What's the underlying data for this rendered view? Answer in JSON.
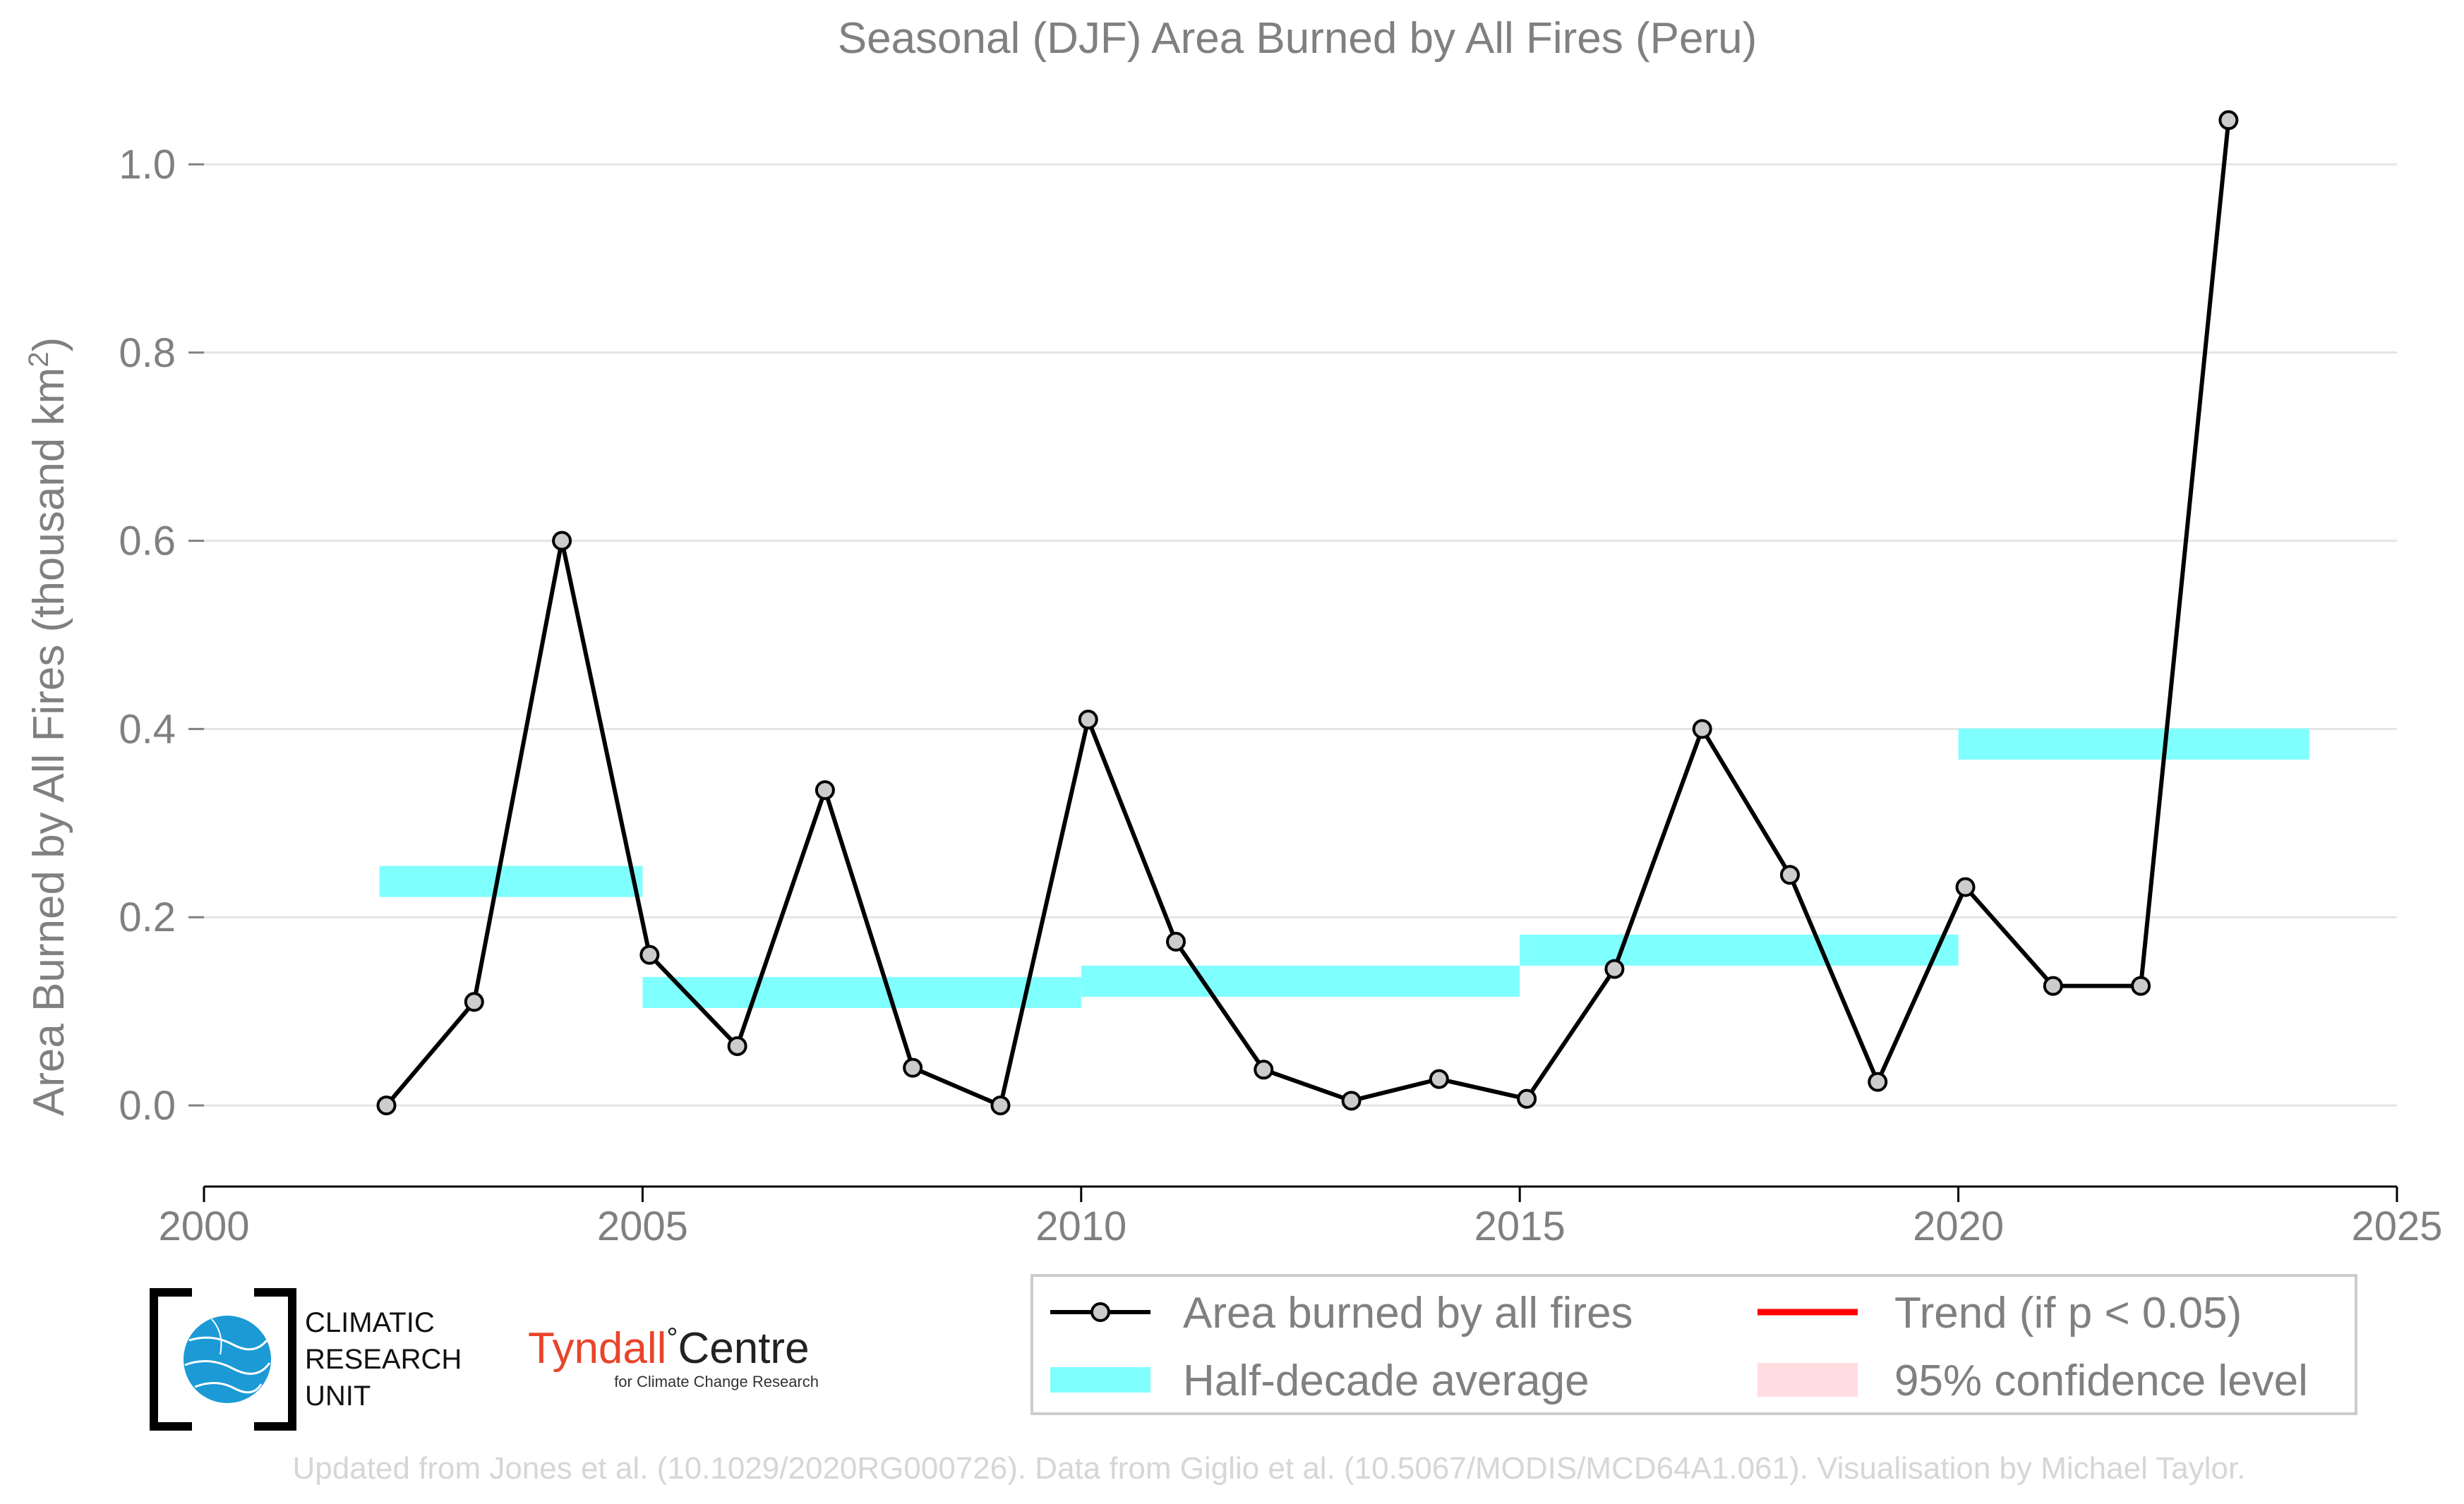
{
  "chart_data": {
    "type": "line",
    "title": "Seasonal (DJF) Area Burned by All Fires (Peru)",
    "xlabel": "",
    "ylabel_main": "Area Burned by All Fires (thousand km",
    "ylabel_sup": "2",
    "ylabel_close": ")",
    "xlim": [
      2000,
      2025
    ],
    "ylim": [
      -0.085,
      1.09
    ],
    "x_ticks": [
      2000,
      2005,
      2010,
      2015,
      2020,
      2025
    ],
    "x_tick_labels": [
      "2000",
      "2005",
      "2010",
      "2015",
      "2020",
      "2025"
    ],
    "y_ticks": [
      0.0,
      0.2,
      0.4,
      0.6,
      0.8,
      1.0
    ],
    "y_tick_labels": [
      "0.0",
      "0.2",
      "0.4",
      "0.6",
      "0.8",
      "1.0"
    ],
    "grid": "horizontal",
    "series": [
      {
        "name": "Area burned by all fires",
        "color": "#000000",
        "marker_fill": "#cccccc",
        "x": [
          2002.08,
          2003.08,
          2004.08,
          2005.08,
          2006.08,
          2007.08,
          2008.08,
          2009.08,
          2010.08,
          2011.08,
          2012.08,
          2013.08,
          2014.08,
          2015.08,
          2016.08,
          2017.08,
          2018.08,
          2019.08,
          2020.08,
          2021.08,
          2022.08,
          2023.08
        ],
        "y": [
          0.0,
          0.11,
          0.6,
          0.16,
          0.063,
          0.335,
          0.04,
          0.0,
          0.41,
          0.174,
          0.038,
          0.005,
          0.028,
          0.007,
          0.145,
          0.4,
          0.245,
          0.025,
          0.232,
          0.127,
          0.127,
          1.047
        ]
      }
    ],
    "half_decade_average": {
      "name": "Half-decade average",
      "color": "#80ffff",
      "segments": [
        {
          "x0": 2002.0,
          "x1": 2005.0,
          "y": 0.238
        },
        {
          "x0": 2005.0,
          "x1": 2010.0,
          "y": 0.12
        },
        {
          "x0": 2010.0,
          "x1": 2015.0,
          "y": 0.132
        },
        {
          "x0": 2015.0,
          "x1": 2020.0,
          "y": 0.165
        },
        {
          "x0": 2020.0,
          "x1": 2024.0,
          "y": 0.384
        }
      ]
    },
    "legend": {
      "placement": "bottom-right",
      "entries": [
        {
          "label": "Area burned by all fires",
          "kind": "line-marker",
          "color": "#000000"
        },
        {
          "label": "Trend (if p < 0.05)",
          "kind": "line",
          "color": "#ff0000"
        },
        {
          "label": "Half-decade average",
          "kind": "band",
          "color": "#80ffff"
        },
        {
          "label": "95% confidence level",
          "kind": "band",
          "color": "#ffdde0"
        }
      ]
    }
  },
  "logos": {
    "cru": {
      "line1": "CLIMATIC",
      "line2": "RESEARCH",
      "line3": "UNIT",
      "icon": "globe-icon",
      "color": "#1c9ad6"
    },
    "tyndall": {
      "name": "Tyndall",
      "degree": "°",
      "centre": "Centre",
      "subtitle": "for Climate Change Research",
      "name_color": "#e8452c",
      "centre_color": "#222222"
    }
  },
  "credit": "Updated from Jones et al. (10.1029/2020RG000726). Data from Giglio et al. (10.5067/MODIS/MCD64A1.061). Visualisation by Michael Taylor."
}
